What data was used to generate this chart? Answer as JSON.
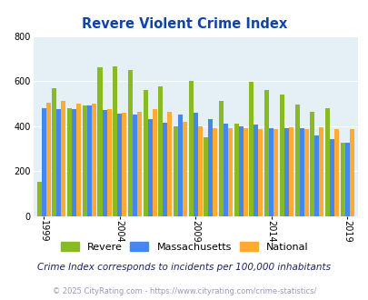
{
  "title": "Revere Violent Crime Index",
  "years": [
    1999,
    2000,
    2001,
    2002,
    2003,
    2004,
    2005,
    2006,
    2007,
    2008,
    2009,
    2010,
    2011,
    2012,
    2013,
    2014,
    2015,
    2016,
    2017,
    2018,
    2019
  ],
  "revere": [
    150,
    570,
    480,
    490,
    660,
    665,
    650,
    560,
    575,
    400,
    600,
    350,
    510,
    410,
    595,
    560,
    540,
    495,
    465,
    480,
    325
  ],
  "massachusetts": [
    480,
    475,
    475,
    490,
    470,
    455,
    450,
    430,
    415,
    450,
    460,
    430,
    410,
    400,
    405,
    390,
    390,
    390,
    360,
    340,
    325
  ],
  "national": [
    505,
    510,
    500,
    500,
    475,
    460,
    465,
    475,
    465,
    420,
    400,
    390,
    390,
    390,
    385,
    385,
    395,
    385,
    395,
    385,
    385
  ],
  "revere_color": "#88bb22",
  "mass_color": "#4488ee",
  "national_color": "#ffaa33",
  "bg_color": "#e4f0f6",
  "title_color": "#1144aa",
  "ylim": [
    0,
    800
  ],
  "yticks": [
    0,
    200,
    400,
    600,
    800
  ],
  "subtitle": "Crime Index corresponds to incidents per 100,000 inhabitants",
  "footer": "© 2025 CityRating.com - https://www.cityrating.com/crime-statistics/",
  "xlabel_ticks": [
    1999,
    2004,
    2009,
    2014,
    2019
  ],
  "bar_width": 0.3
}
